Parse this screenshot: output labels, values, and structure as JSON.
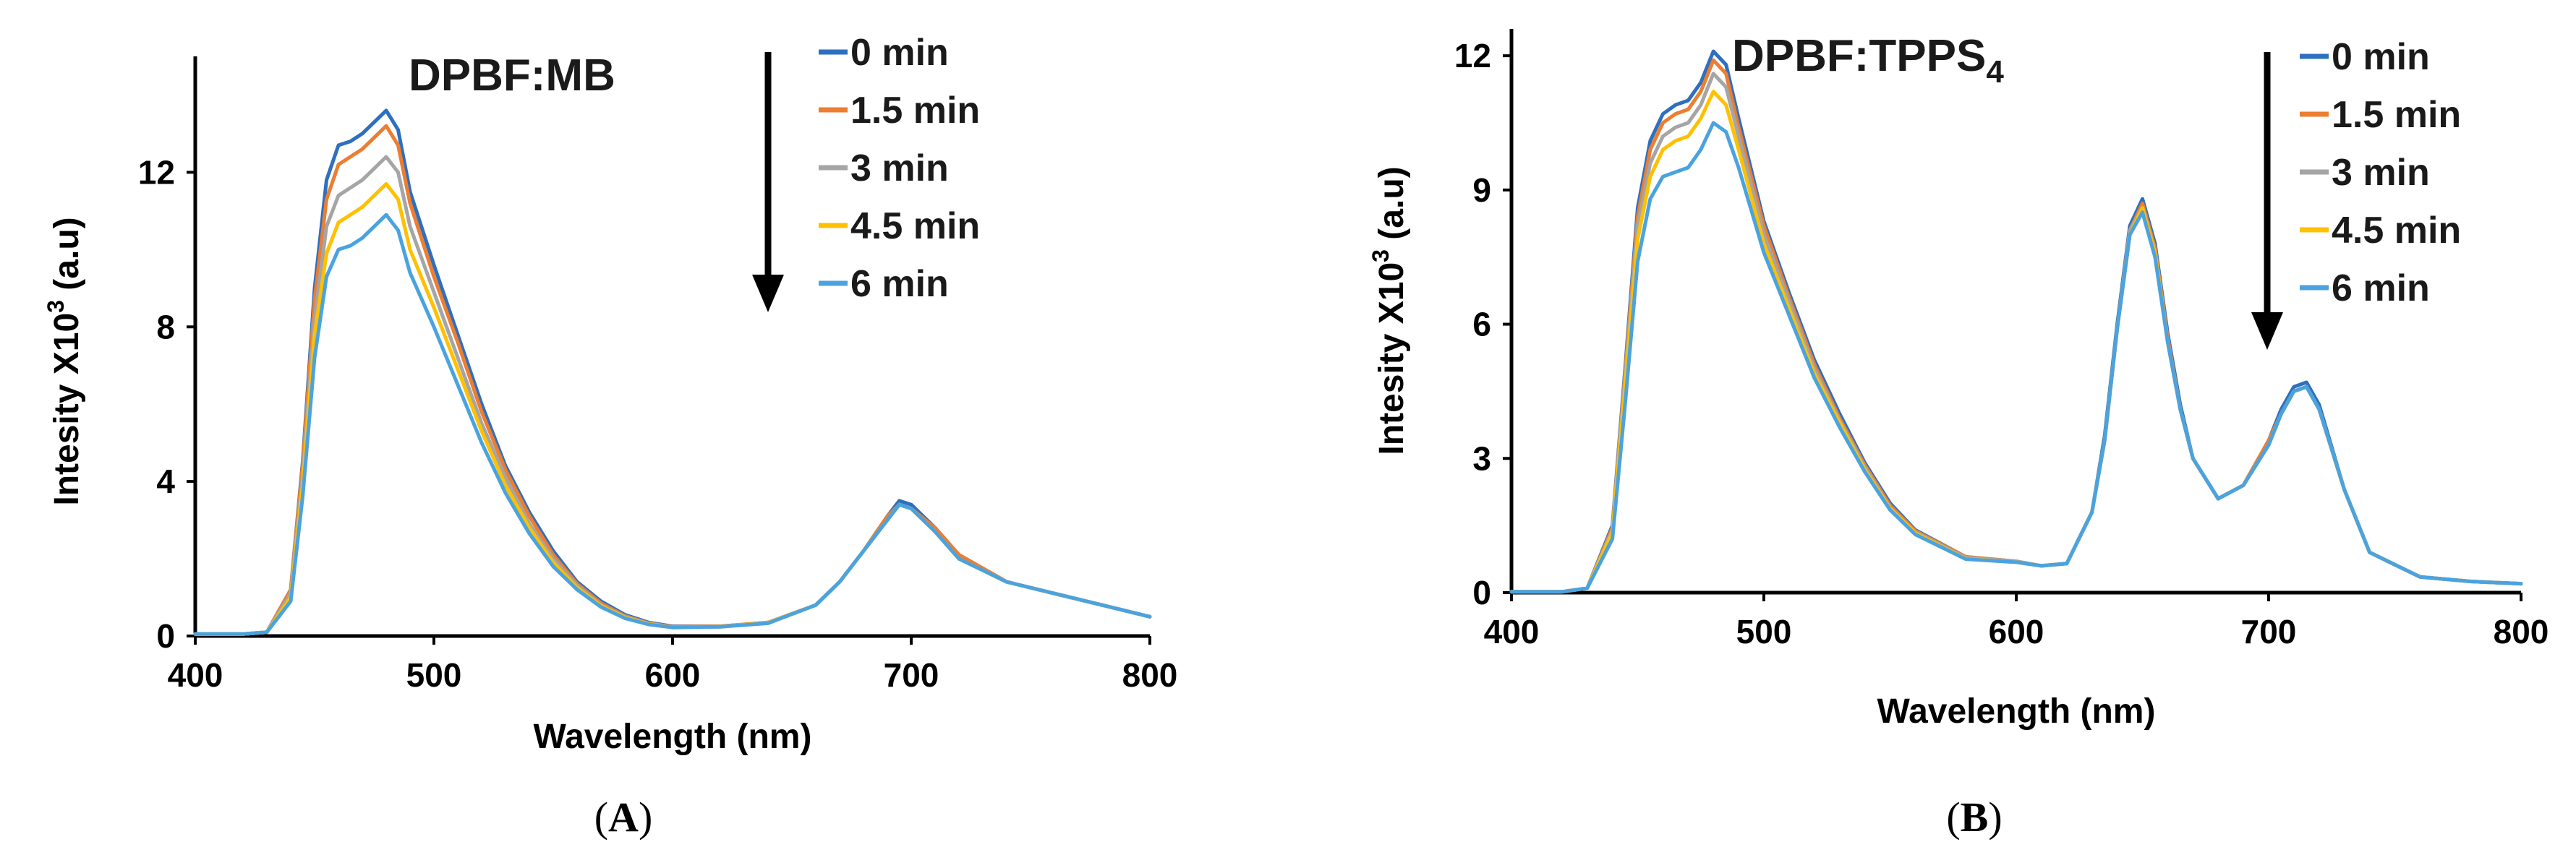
{
  "chart_data": [
    {
      "type": "line",
      "panel_label": "A",
      "title": "DPBF:MB",
      "xlabel": "Wavelength (nm)",
      "ylabel_main": "Intesity X10",
      "ylabel_sup": "3",
      "ylabel_tail": " (a.u)",
      "xlim": [
        400,
        800
      ],
      "ylim": [
        0,
        15
      ],
      "xticks": [
        "400",
        "500",
        "600",
        "700",
        "800"
      ],
      "yticks": [
        "0",
        "4",
        "8",
        "12"
      ],
      "x": [
        400,
        420,
        430,
        440,
        445,
        450,
        455,
        460,
        465,
        470,
        475,
        480,
        485,
        490,
        500,
        510,
        520,
        530,
        540,
        550,
        560,
        570,
        580,
        590,
        600,
        620,
        640,
        660,
        670,
        680,
        690,
        695,
        700,
        710,
        720,
        740,
        760,
        780,
        800
      ],
      "series": [
        {
          "name": "0 min",
          "color": "#2e6fbf",
          "values": [
            0.05,
            0.05,
            0.1,
            1.2,
            4.5,
            9.0,
            11.8,
            12.7,
            12.8,
            13.0,
            13.3,
            13.6,
            13.1,
            11.5,
            9.6,
            7.8,
            6.0,
            4.4,
            3.2,
            2.2,
            1.4,
            0.9,
            0.55,
            0.35,
            0.25,
            0.25,
            0.35,
            0.8,
            1.4,
            2.2,
            3.1,
            3.5,
            3.4,
            2.8,
            2.1,
            1.4,
            1.1,
            0.8,
            0.5
          ]
        },
        {
          "name": "1.5 min",
          "color": "#ed7d31",
          "values": [
            0.05,
            0.05,
            0.1,
            1.2,
            4.4,
            8.7,
            11.3,
            12.2,
            12.4,
            12.6,
            12.9,
            13.2,
            12.7,
            11.2,
            9.3,
            7.6,
            5.8,
            4.3,
            3.1,
            2.1,
            1.35,
            0.85,
            0.52,
            0.33,
            0.24,
            0.25,
            0.35,
            0.8,
            1.4,
            2.2,
            3.1,
            3.4,
            3.3,
            2.8,
            2.1,
            1.4,
            1.1,
            0.8,
            0.5
          ]
        },
        {
          "name": "3 min",
          "color": "#a5a5a5",
          "values": [
            0.05,
            0.05,
            0.1,
            1.1,
            4.1,
            8.2,
            10.6,
            11.4,
            11.6,
            11.8,
            12.1,
            12.4,
            12.0,
            10.6,
            8.9,
            7.2,
            5.5,
            4.1,
            2.9,
            2.0,
            1.3,
            0.8,
            0.5,
            0.32,
            0.23,
            0.24,
            0.34,
            0.8,
            1.4,
            2.2,
            3.0,
            3.4,
            3.3,
            2.7,
            2.0,
            1.4,
            1.1,
            0.8,
            0.5
          ]
        },
        {
          "name": "4.5 min",
          "color": "#ffc000",
          "values": [
            0.05,
            0.05,
            0.1,
            1.0,
            3.9,
            7.8,
            9.9,
            10.7,
            10.9,
            11.1,
            11.4,
            11.7,
            11.3,
            10.0,
            8.5,
            6.9,
            5.3,
            3.9,
            2.8,
            1.9,
            1.25,
            0.78,
            0.48,
            0.31,
            0.22,
            0.24,
            0.34,
            0.8,
            1.4,
            2.2,
            3.0,
            3.4,
            3.3,
            2.7,
            2.0,
            1.4,
            1.1,
            0.8,
            0.5
          ]
        },
        {
          "name": "6 min",
          "color": "#4aa3df",
          "values": [
            0.05,
            0.05,
            0.1,
            0.9,
            3.6,
            7.2,
            9.3,
            10.0,
            10.1,
            10.3,
            10.6,
            10.9,
            10.5,
            9.4,
            8.0,
            6.5,
            5.0,
            3.7,
            2.65,
            1.8,
            1.2,
            0.75,
            0.46,
            0.3,
            0.22,
            0.24,
            0.33,
            0.8,
            1.4,
            2.2,
            3.0,
            3.4,
            3.3,
            2.7,
            2.0,
            1.4,
            1.1,
            0.8,
            0.5
          ]
        }
      ]
    },
    {
      "type": "line",
      "panel_label": "B",
      "title": "DPBF:TPPS",
      "title_sub": "4",
      "xlabel": "Wavelength (nm)",
      "ylabel_main": "Intesity X10",
      "ylabel_sup": "3",
      "ylabel_tail": " (a.u)",
      "xlim": [
        400,
        800
      ],
      "ylim": [
        0,
        12.6
      ],
      "xticks": [
        "400",
        "500",
        "600",
        "700",
        "800"
      ],
      "yticks": [
        "0",
        "3",
        "6",
        "9",
        "12"
      ],
      "x": [
        400,
        420,
        430,
        440,
        445,
        450,
        455,
        460,
        465,
        470,
        475,
        480,
        485,
        490,
        500,
        510,
        520,
        530,
        540,
        550,
        560,
        580,
        600,
        610,
        620,
        630,
        635,
        640,
        645,
        650,
        655,
        660,
        665,
        670,
        680,
        690,
        700,
        705,
        710,
        715,
        720,
        730,
        740,
        760,
        780,
        800
      ],
      "series": [
        {
          "name": "0 min",
          "color": "#2e6fbf",
          "values": [
            0.02,
            0.02,
            0.1,
            1.5,
            5.0,
            8.6,
            10.1,
            10.7,
            10.9,
            11.0,
            11.4,
            12.1,
            11.8,
            10.6,
            8.3,
            6.7,
            5.2,
            4.0,
            2.9,
            2.0,
            1.4,
            0.8,
            0.7,
            0.6,
            0.65,
            1.8,
            3.5,
            6.0,
            8.2,
            8.8,
            7.8,
            5.8,
            4.2,
            3.0,
            2.1,
            2.4,
            3.4,
            4.1,
            4.6,
            4.7,
            4.2,
            2.3,
            0.9,
            0.35,
            0.25,
            0.2
          ]
        },
        {
          "name": "1.5 min",
          "color": "#ed7d31",
          "values": [
            0.02,
            0.02,
            0.1,
            1.45,
            4.9,
            8.4,
            9.9,
            10.5,
            10.7,
            10.8,
            11.2,
            11.9,
            11.6,
            10.4,
            8.2,
            6.6,
            5.1,
            3.9,
            2.85,
            1.95,
            1.38,
            0.8,
            0.7,
            0.6,
            0.65,
            1.8,
            3.4,
            5.9,
            8.1,
            8.7,
            7.7,
            5.7,
            4.1,
            3.0,
            2.1,
            2.4,
            3.4,
            4.0,
            4.5,
            4.6,
            4.1,
            2.3,
            0.9,
            0.35,
            0.25,
            0.2
          ]
        },
        {
          "name": "3 min",
          "color": "#a5a5a5",
          "values": [
            0.02,
            0.02,
            0.1,
            1.4,
            4.8,
            8.2,
            9.6,
            10.2,
            10.4,
            10.5,
            10.9,
            11.6,
            11.3,
            10.2,
            8.0,
            6.5,
            5.0,
            3.85,
            2.8,
            1.9,
            1.35,
            0.78,
            0.7,
            0.6,
            0.65,
            1.8,
            3.4,
            5.9,
            8.1,
            8.6,
            7.6,
            5.6,
            4.1,
            3.0,
            2.1,
            2.4,
            3.3,
            4.0,
            4.5,
            4.6,
            4.1,
            2.3,
            0.9,
            0.35,
            0.25,
            0.2
          ]
        },
        {
          "name": "4.5 min",
          "color": "#ffc000",
          "values": [
            0.02,
            0.02,
            0.1,
            1.35,
            4.6,
            7.9,
            9.3,
            9.9,
            10.1,
            10.2,
            10.6,
            11.2,
            10.9,
            9.9,
            7.8,
            6.35,
            4.9,
            3.8,
            2.75,
            1.88,
            1.33,
            0.76,
            0.68,
            0.6,
            0.65,
            1.8,
            3.4,
            5.9,
            8.0,
            8.6,
            7.6,
            5.6,
            4.1,
            3.0,
            2.1,
            2.4,
            3.3,
            4.0,
            4.5,
            4.6,
            4.1,
            2.3,
            0.9,
            0.35,
            0.25,
            0.2
          ]
        },
        {
          "name": "6 min",
          "color": "#4aa3df",
          "values": [
            0.02,
            0.02,
            0.1,
            1.2,
            4.2,
            7.4,
            8.8,
            9.3,
            9.4,
            9.5,
            9.9,
            10.5,
            10.3,
            9.5,
            7.6,
            6.2,
            4.8,
            3.7,
            2.7,
            1.85,
            1.3,
            0.75,
            0.68,
            0.6,
            0.65,
            1.8,
            3.4,
            5.9,
            8.0,
            8.5,
            7.5,
            5.6,
            4.1,
            3.0,
            2.1,
            2.4,
            3.3,
            4.0,
            4.5,
            4.6,
            4.1,
            2.3,
            0.9,
            0.35,
            0.25,
            0.2
          ]
        }
      ]
    }
  ]
}
